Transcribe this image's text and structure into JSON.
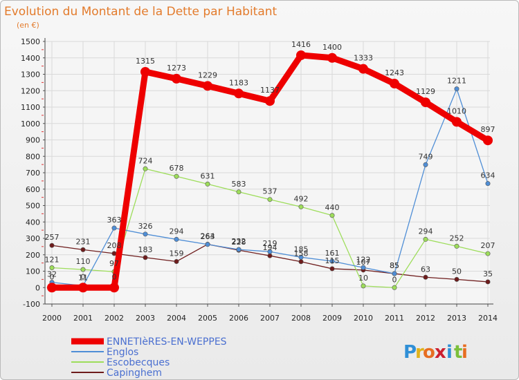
{
  "chart_data": {
    "type": "line",
    "title": "Evolution du Montant de la Dette par Habitant",
    "subtitle": "(en €)",
    "x": [
      "2000",
      "2001",
      "2002",
      "2003",
      "2004",
      "2005",
      "2006",
      "2007",
      "2008",
      "2009",
      "2010",
      "2011",
      "2012",
      "2013",
      "2014"
    ],
    "ylim": [
      -100,
      1500
    ],
    "yticks": [
      -100,
      0,
      100,
      200,
      300,
      400,
      500,
      600,
      700,
      800,
      900,
      1000,
      1100,
      1200,
      1300,
      1400,
      1500
    ],
    "grid": true,
    "legend_position": "bottom-left",
    "series": [
      {
        "name": "ENNETIèRES-EN-WEPPES",
        "color": "#ee0000",
        "values": [
          0,
          0,
          0,
          1315,
          1273,
          1229,
          1183,
          1137,
          1416,
          1400,
          1333,
          1243,
          1129,
          1010,
          897
        ],
        "labels": [
          "0",
          "0",
          "0",
          "1315",
          "1273",
          "1229",
          "1183",
          "1137",
          "1416",
          "1400",
          "1333",
          "1243",
          "1129",
          "1010",
          "897"
        ]
      },
      {
        "name": "Englos",
        "color": "#4f8ed6",
        "values": [
          32,
          11,
          363,
          326,
          294,
          263,
          232,
          219,
          185,
          161,
          122,
          85,
          749,
          1211,
          634
        ],
        "labels": [
          "32",
          "11",
          "363",
          "326",
          "294",
          "263",
          "232",
          "219",
          "185",
          "161",
          "122",
          "85",
          "749",
          "1211",
          "634"
        ]
      },
      {
        "name": "Escobecques",
        "color": "#9ddd5a",
        "values": [
          121,
          110,
          97,
          724,
          678,
          631,
          583,
          537,
          492,
          440,
          10,
          0,
          294,
          252,
          207
        ],
        "labels": [
          "121",
          "110",
          "97",
          "724",
          "678",
          "631",
          "583",
          "537",
          "492",
          "440",
          "10",
          "0",
          "294",
          "252",
          "207"
        ]
      },
      {
        "name": "Capinghem",
        "color": "#6e1c1c",
        "values": [
          257,
          231,
          208,
          183,
          159,
          264,
          228,
          194,
          158,
          115,
          107,
          85,
          63,
          50,
          35
        ],
        "labels": [
          "257",
          "231",
          "208",
          "183",
          "159",
          "264",
          "228",
          "194",
          "158",
          "115",
          "107",
          "85",
          "63",
          "50",
          "35"
        ]
      }
    ]
  },
  "brand": {
    "letters": [
      "P",
      "r",
      "o",
      "x",
      "i",
      "t",
      "i"
    ],
    "colors": [
      "#2f8fd6",
      "#e0b21b",
      "#e76d22",
      "#cc1f2f",
      "#2f8fd6",
      "#7bbf3b",
      "#e76d22"
    ]
  }
}
